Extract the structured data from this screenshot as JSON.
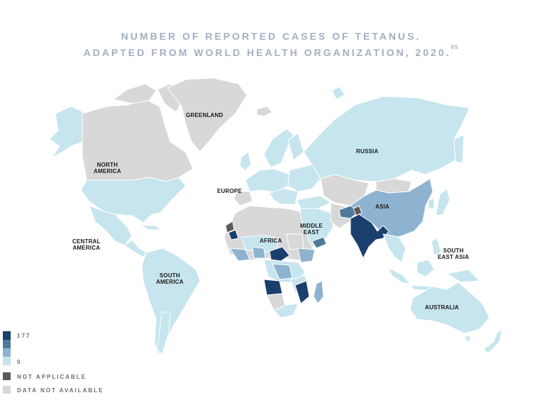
{
  "title": {
    "line1": "NUMBER OF REPORTED CASES OF TETANUS.",
    "line2": "ADAPTED FROM WORLD HEALTH ORGANIZATION, 2020.",
    "ref": "95"
  },
  "labels": {
    "greenland": "GREENLAND",
    "north_america_1": "NORTH",
    "north_america_2": "AMERICA",
    "europe": "EUROPE",
    "russia": "RUSSIA",
    "asia": "ASIA",
    "middle_east_1": "MIDDLE",
    "middle_east_2": "EAST",
    "africa": "AFRICA",
    "central_america_1": "CENTRAL",
    "central_america_2": "AMERICA",
    "south_america_1": "SOUTH",
    "south_america_2": "AMERICA",
    "south_east_asia_1": "SOUTH",
    "south_east_asia_2": "EAST ASIA",
    "australia": "AUSTRALIA"
  },
  "legend": {
    "max_label": "177",
    "min_label": "0",
    "not_applicable": "NOT APPLICABLE",
    "not_available": "DATA NOT AVAILABLE",
    "scale_colors": [
      "#1a3f6e",
      "#4f7a9c",
      "#8eb3d0",
      "#c6e5ee"
    ],
    "not_applicable_color": "#5a5a5a",
    "not_available_color": "#d8d8d8"
  }
}
